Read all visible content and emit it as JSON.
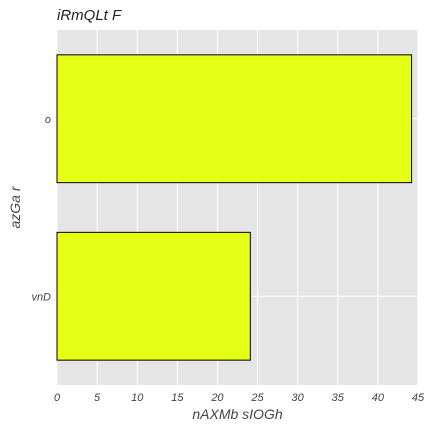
{
  "chart_data": {
    "type": "bar",
    "orientation": "horizontal",
    "title": "iRmQLt F",
    "xlabel": "nAXMb sIOGh",
    "ylabel": "azGa r",
    "categories": [
      "o",
      "vnD"
    ],
    "values": [
      44.2,
      24.1
    ],
    "xlim": [
      0,
      45
    ],
    "xticks": [
      0,
      5,
      10,
      15,
      20,
      25,
      30,
      35,
      40,
      45
    ],
    "grid": true,
    "legend": "none",
    "colors": {
      "bar_fill": "#e5ff15",
      "bar_edge": "#000000",
      "plot_background": "#e5e5e5",
      "grid": "#ffffff"
    }
  }
}
